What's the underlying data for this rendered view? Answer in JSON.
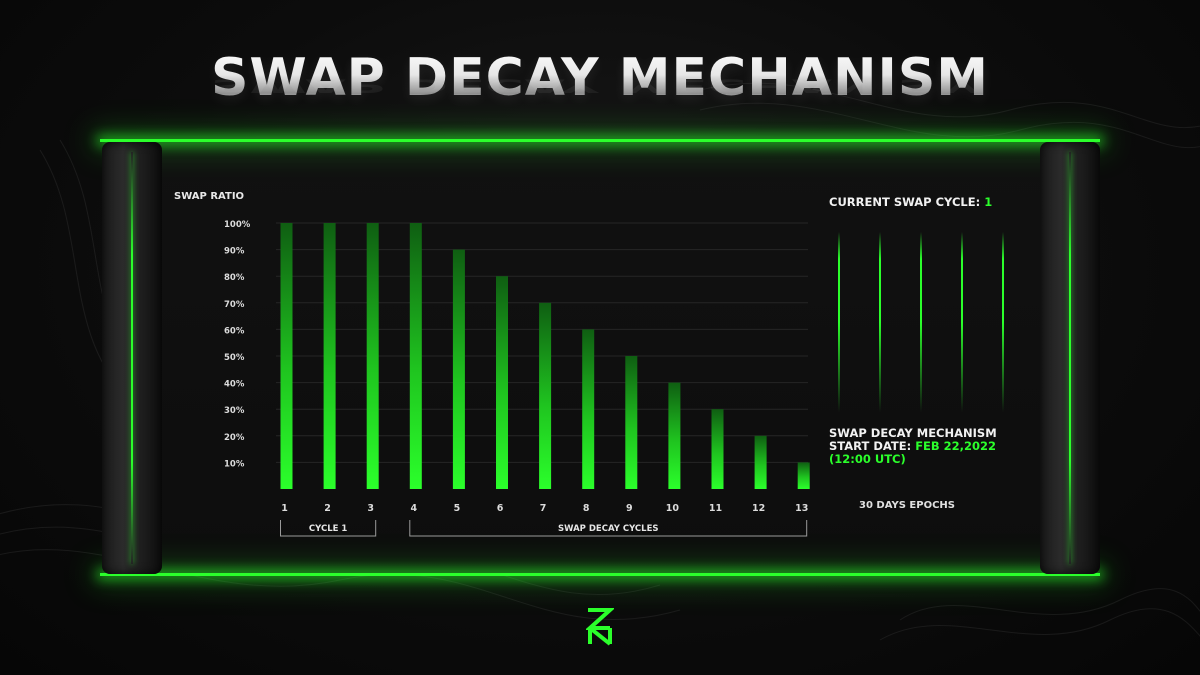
{
  "title": "SWAP DECAY MECHANISM",
  "accent_color": "#2bff2b",
  "chart_data": {
    "type": "bar",
    "ylabel": "SWAP RATIO",
    "xlabel": "",
    "categories": [
      "1",
      "2",
      "3",
      "4",
      "5",
      "6",
      "7",
      "8",
      "9",
      "10",
      "11",
      "12",
      "13"
    ],
    "values": [
      100,
      100,
      100,
      100,
      90,
      80,
      70,
      60,
      50,
      40,
      30,
      20,
      10
    ],
    "yticks": [
      "10%",
      "20%",
      "30%",
      "40%",
      "50%",
      "60%",
      "70%",
      "80%",
      "90%",
      "100%"
    ],
    "ytick_values": [
      10,
      20,
      30,
      40,
      50,
      60,
      70,
      80,
      90,
      100
    ],
    "ylim": [
      0,
      100
    ],
    "grid": true,
    "annotations": [
      {
        "label": "CYCLE  1",
        "from": "1",
        "to": "3"
      },
      {
        "label": "SWAP DECAY CYCLES",
        "from": "4",
        "to": "13"
      }
    ]
  },
  "info": {
    "current_cycle_label": "CURRENT SWAP CYCLE:",
    "current_cycle_value": "1",
    "start_line1": "SWAP DECAY MECHANISM",
    "start_label": "START DATE:",
    "start_date": "FEB 22,2022",
    "start_time": "(12:00 UTC)",
    "epochs": "30 DAYS EPOCHS",
    "cycle_markers": 5
  },
  "logo": "zn-logo-icon"
}
